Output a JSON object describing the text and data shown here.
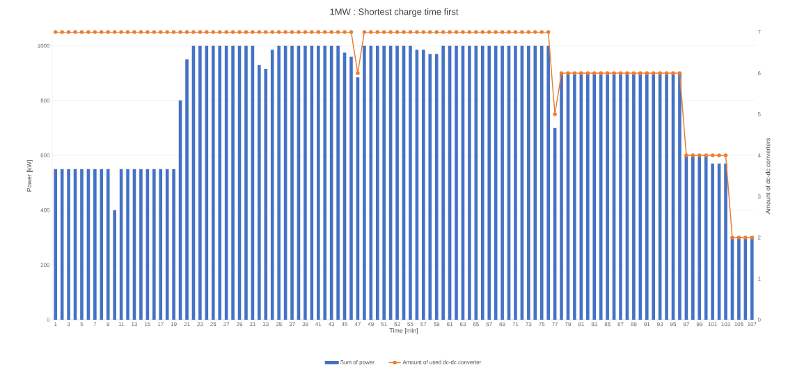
{
  "chart_data": {
    "type": "bar",
    "title": "1MW : Shortest charge time first",
    "xlabel": "Time [min]",
    "ylabel": "Power [kW]",
    "y2label": "Amount of dc-dc converters",
    "categories": [
      "1",
      null,
      "3",
      null,
      "5",
      null,
      "7",
      null,
      "9",
      null,
      "11",
      null,
      "13",
      null,
      "15",
      null,
      "17",
      null,
      "19",
      null,
      "21",
      null,
      "23",
      null,
      "25",
      null,
      "27",
      null,
      "29",
      null,
      "31",
      null,
      "33",
      null,
      "35",
      null,
      "37",
      null,
      "39",
      null,
      "41",
      null,
      "43",
      null,
      "45",
      null,
      "47",
      null,
      "49",
      null,
      "51",
      null,
      "53",
      null,
      "55",
      null,
      "57",
      null,
      "59",
      null,
      "61",
      null,
      "63",
      null,
      "65",
      null,
      "67",
      null,
      "69",
      null,
      "71",
      null,
      "73",
      null,
      "75",
      null,
      "77",
      null,
      "79",
      null,
      "81",
      null,
      "83",
      null,
      "85",
      null,
      "87",
      null,
      "89",
      null,
      "91",
      null,
      "93",
      null,
      "95",
      null,
      "97",
      null,
      "99",
      null,
      "101",
      null,
      "103",
      null,
      "105",
      null,
      "107"
    ],
    "series": [
      {
        "name": "Sum of power",
        "color": "#4472c4",
        "values": [
          550,
          550,
          550,
          550,
          550,
          550,
          550,
          550,
          550,
          400,
          550,
          550,
          550,
          550,
          550,
          550,
          550,
          550,
          550,
          800,
          950,
          1000,
          1000,
          1000,
          1000,
          1000,
          1000,
          1000,
          1000,
          1000,
          1000,
          930,
          915,
          985,
          1000,
          1000,
          1000,
          1000,
          1000,
          1000,
          1000,
          1000,
          1000,
          1000,
          975,
          960,
          885,
          1000,
          1000,
          1000,
          1000,
          1000,
          1000,
          1000,
          1000,
          985,
          985,
          970,
          970,
          1000,
          1000,
          1000,
          1000,
          1000,
          1000,
          1000,
          1000,
          1000,
          1000,
          1000,
          1000,
          1000,
          1000,
          1000,
          1000,
          1000,
          700,
          900,
          900,
          900,
          900,
          900,
          900,
          900,
          900,
          900,
          900,
          900,
          900,
          900,
          900,
          900,
          900,
          900,
          900,
          900,
          600,
          600,
          600,
          600,
          570,
          570,
          570,
          300,
          300,
          300,
          300
        ]
      },
      {
        "name": "Amount of used dc-dc converter",
        "type": "line",
        "axis": "y2",
        "color": "#ed7d31",
        "values": [
          7,
          7,
          7,
          7,
          7,
          7,
          7,
          7,
          7,
          7,
          7,
          7,
          7,
          7,
          7,
          7,
          7,
          7,
          7,
          7,
          7,
          7,
          7,
          7,
          7,
          7,
          7,
          7,
          7,
          7,
          7,
          7,
          7,
          7,
          7,
          7,
          7,
          7,
          7,
          7,
          7,
          7,
          7,
          7,
          7,
          7,
          6,
          7,
          7,
          7,
          7,
          7,
          7,
          7,
          7,
          7,
          7,
          7,
          7,
          7,
          7,
          7,
          7,
          7,
          7,
          7,
          7,
          7,
          7,
          7,
          7,
          7,
          7,
          7,
          7,
          7,
          5,
          6,
          6,
          6,
          6,
          6,
          6,
          6,
          6,
          6,
          6,
          6,
          6,
          6,
          6,
          6,
          6,
          6,
          6,
          6,
          4,
          4,
          4,
          4,
          4,
          4,
          4,
          2,
          2,
          2,
          2
        ]
      }
    ],
    "ylim": [
      0,
      1050
    ],
    "yticks": [
      0,
      200,
      400,
      600,
      800,
      1000
    ],
    "y2lim": [
      0,
      7
    ],
    "y2ticks": [
      0,
      1,
      2,
      3,
      4,
      5,
      6,
      7
    ],
    "grid": "y",
    "legend": "bottom",
    "marker": "circle",
    "line_style": "solid"
  }
}
